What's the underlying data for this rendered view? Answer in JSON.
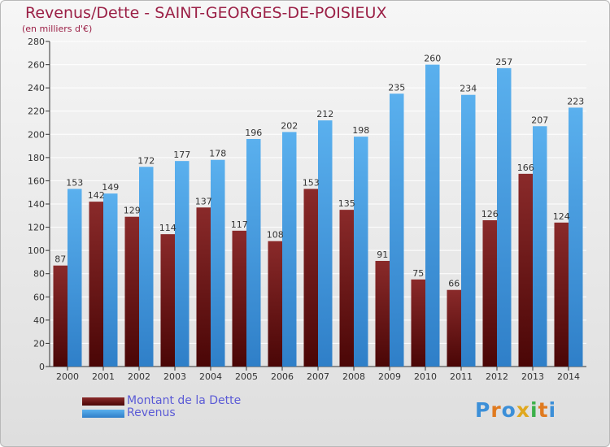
{
  "title": "Revenus/Dette - SAINT-GEORGES-DE-POISIEUX",
  "subtitle": "(en milliers d'€)",
  "legend": [
    {
      "label": "Montant de la Dette",
      "color": "#7a1a1a"
    },
    {
      "label": "Revenus",
      "color": "#4aa3e6"
    }
  ],
  "logo": {
    "text": "Proxiti",
    "letters": [
      "P",
      "r",
      "o",
      "x",
      "i",
      "t",
      "i"
    ],
    "colors": [
      "#3c8fd8",
      "#e07a1f",
      "#3c8fd8",
      "#e0a81f",
      "#3cb04a",
      "#e07a1f",
      "#3c8fd8"
    ]
  },
  "chart_data": {
    "type": "bar",
    "categories": [
      "2000",
      "2001",
      "2002",
      "2003",
      "2004",
      "2005",
      "2006",
      "2007",
      "2008",
      "2009",
      "2010",
      "2011",
      "2012",
      "2013",
      "2014"
    ],
    "series": [
      {
        "name": "Montant de la Dette",
        "color": "#7a1a1a",
        "values": [
          87,
          142,
          129,
          114,
          137,
          117,
          108,
          153,
          135,
          91,
          75,
          66,
          126,
          166,
          124
        ]
      },
      {
        "name": "Revenus",
        "color": "#4aa3e6",
        "values": [
          153,
          149,
          172,
          177,
          178,
          196,
          202,
          212,
          198,
          235,
          260,
          234,
          257,
          207,
          223
        ]
      }
    ],
    "ylim": [
      0,
      280
    ],
    "yticks": [
      0,
      20,
      40,
      60,
      80,
      100,
      120,
      140,
      160,
      180,
      200,
      220,
      240,
      260,
      280
    ],
    "grid": true
  }
}
